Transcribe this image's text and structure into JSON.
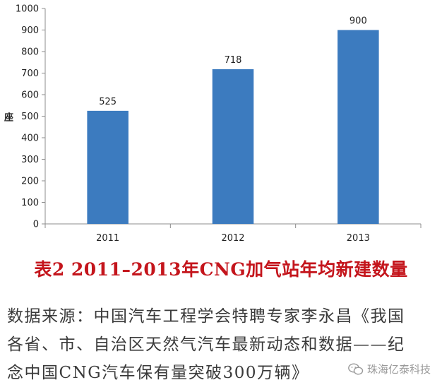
{
  "chart_data": {
    "type": "bar",
    "categories": [
      "2011",
      "2012",
      "2013"
    ],
    "values": [
      525,
      718,
      900
    ],
    "data_labels": [
      "525",
      "718",
      "900"
    ],
    "ylabel": "座",
    "ylim": [
      0,
      1000
    ],
    "yticks": [
      "0",
      "100",
      "200",
      "300",
      "400",
      "500",
      "600",
      "700",
      "800",
      "900",
      "1000"
    ],
    "grid": false,
    "bar_color": "#3c7bbf"
  },
  "caption": "表2 2011–2013年CNG加气站年均新建数量",
  "source": {
    "line1": "数据来源：中国汽车工程学会特聘专家李永昌《我国",
    "line2": "各省、市、自治区天然气汽车最新动态和数据——纪",
    "line3": "念中国CNG汽车保有量突破300万辆》"
  },
  "watermark": {
    "icon": "wechat-icon",
    "text": "珠海亿泰科技"
  }
}
